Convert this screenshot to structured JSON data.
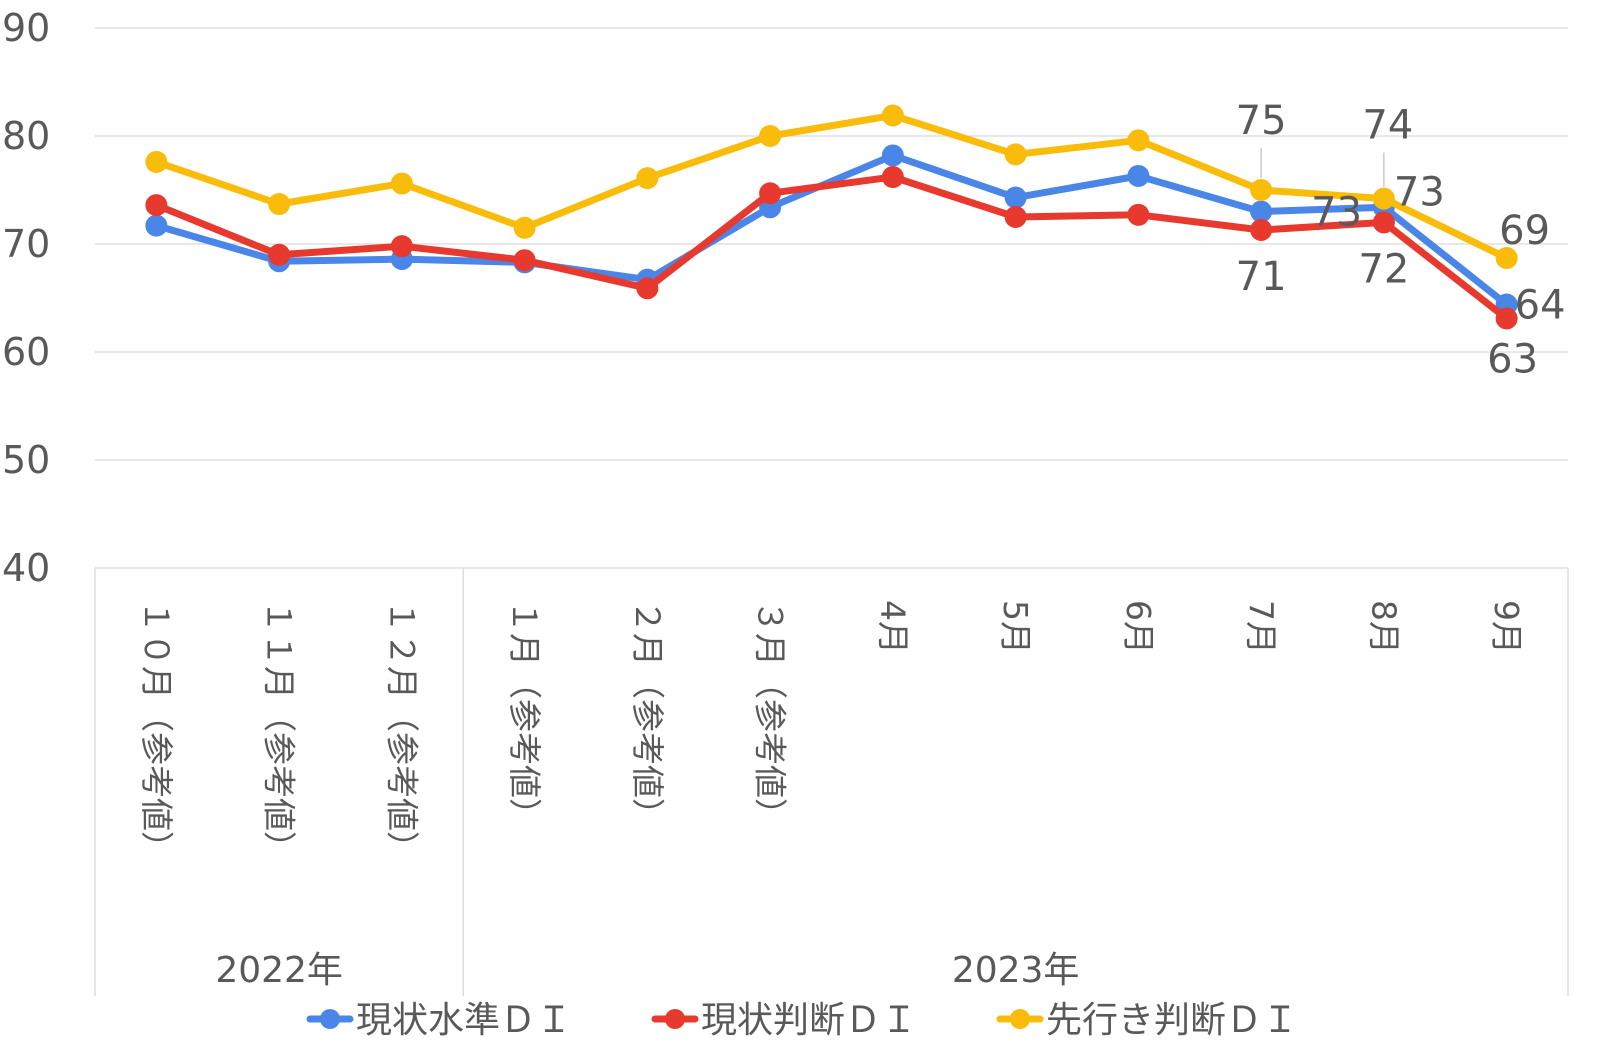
{
  "chart_data": {
    "type": "line",
    "categories": [
      "１０月（参考値）",
      "１１月（参考値）",
      "１２月（参考値）",
      "１月（参考値）",
      "２月（参考値）",
      "３月（参考値）",
      "4月",
      "5月",
      "6月",
      "7月",
      "8月",
      "9月"
    ],
    "groups": [
      {
        "label": "2022年",
        "count": 3
      },
      {
        "label": "2023年",
        "count": 9
      }
    ],
    "series": [
      {
        "name": "現状水準ＤＩ",
        "color": "#4A86E8",
        "values": [
          71.7,
          68.4,
          68.6,
          68.3,
          66.7,
          73.4,
          78.2,
          74.3,
          76.3,
          73.0,
          73.4,
          64.4
        ],
        "labels": {
          "9": "73",
          "11": "64"
        }
      },
      {
        "name": "現状判断ＤＩ",
        "color": "#E8392F",
        "values": [
          73.6,
          69.0,
          69.8,
          68.5,
          65.9,
          74.7,
          76.2,
          72.5,
          72.7,
          71.3,
          72.0,
          63.1
        ],
        "labels": {
          "9": "71",
          "10": "72",
          "11": "63"
        }
      },
      {
        "name": "先行き判断ＤＩ",
        "color": "#F9BC0B",
        "values": [
          77.6,
          73.7,
          75.6,
          71.5,
          76.1,
          80.0,
          81.9,
          78.3,
          79.6,
          75.0,
          74.2,
          68.7
        ],
        "labels": {
          "9": "75",
          "10": "74",
          "11": "69"
        }
      }
    ],
    "extra_labels": [
      {
        "text": "73",
        "category_index": 10
      }
    ],
    "ylim": [
      40,
      90
    ],
    "yticks": [
      40,
      50,
      60,
      70,
      80,
      90
    ],
    "grid": true,
    "legend_position": "bottom"
  }
}
